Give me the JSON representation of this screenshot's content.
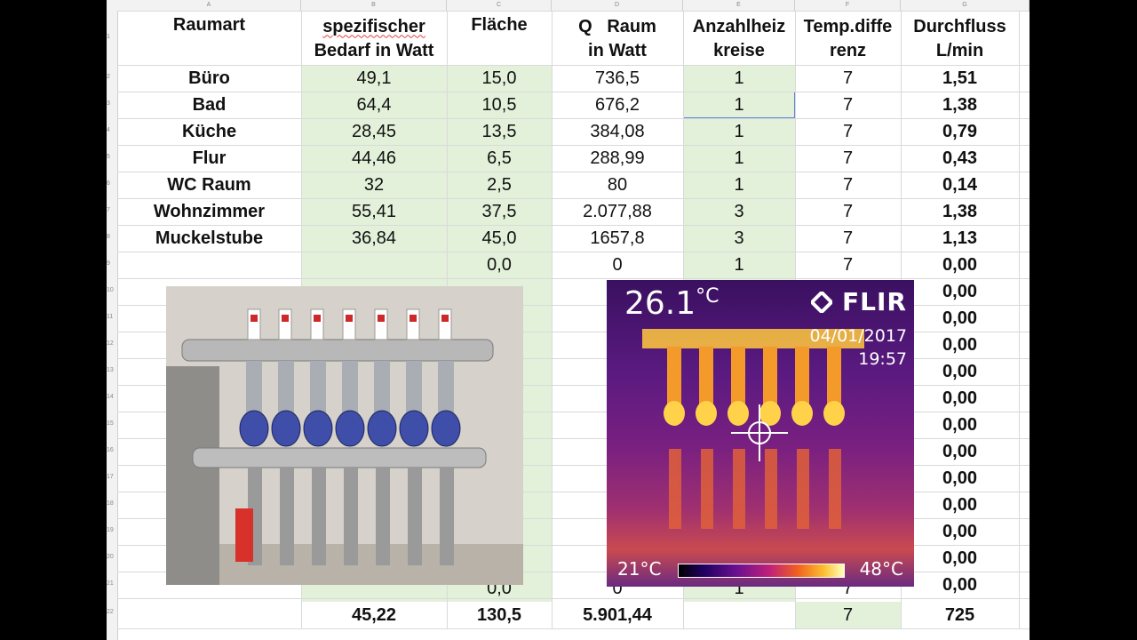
{
  "columns": [
    "A",
    "B",
    "C",
    "D",
    "E",
    "F",
    "G"
  ],
  "headers": {
    "a": [
      "Raumart"
    ],
    "b": [
      "spezifischer",
      "Bedarf in Watt"
    ],
    "c": [
      "Fläche"
    ],
    "d": [
      "Q   Raum",
      "in Watt"
    ],
    "e": [
      "Anzahlheiz",
      "kreise"
    ],
    "f": [
      "Temp.diffe",
      "renz"
    ],
    "g": [
      "Durchfluss",
      "L/min"
    ]
  },
  "row_numbers": [
    "1",
    "2",
    "3",
    "4",
    "5",
    "6",
    "7",
    "8",
    "9",
    "10",
    "11",
    "12",
    "13",
    "14",
    "15",
    "16",
    "17",
    "18",
    "19",
    "20",
    "21",
    "22"
  ],
  "rows": [
    {
      "raumart": "Büro",
      "bedarf": "49,1",
      "flaeche": "15,0",
      "q": "736,5",
      "kreise": "1",
      "temp": "7",
      "durchfluss": "1,51"
    },
    {
      "raumart": "Bad",
      "bedarf": "64,4",
      "flaeche": "10,5",
      "q": "676,2",
      "kreise": "1",
      "temp": "7",
      "durchfluss": "1,38"
    },
    {
      "raumart": "Küche",
      "bedarf": "28,45",
      "flaeche": "13,5",
      "q": "384,08",
      "kreise": "1",
      "temp": "7",
      "durchfluss": "0,79"
    },
    {
      "raumart": "Flur",
      "bedarf": "44,46",
      "flaeche": "6,5",
      "q": "288,99",
      "kreise": "1",
      "temp": "7",
      "durchfluss": "0,43"
    },
    {
      "raumart": "WC Raum",
      "bedarf": "32",
      "flaeche": "2,5",
      "q": "80",
      "kreise": "1",
      "temp": "7",
      "durchfluss": "0,14"
    },
    {
      "raumart": "Wohnzimmer",
      "bedarf": "55,41",
      "flaeche": "37,5",
      "q": "2.077,88",
      "kreise": "3",
      "temp": "7",
      "durchfluss": "1,38"
    },
    {
      "raumart": "Muckelstube",
      "bedarf": "36,84",
      "flaeche": "45,0",
      "q": "1657,8",
      "kreise": "3",
      "temp": "7",
      "durchfluss": "1,13"
    },
    {
      "raumart": "",
      "bedarf": "",
      "flaeche": "0,0",
      "q": "0",
      "kreise": "1",
      "temp": "7",
      "durchfluss": "0,00"
    }
  ],
  "extra_durchfluss": [
    "0,00",
    "0,00",
    "0,00",
    "0,00",
    "0,00",
    "0,00",
    "0,00",
    "0,00",
    "0,00",
    "0,00",
    "0,00",
    "0,00"
  ],
  "row21": {
    "flaeche": "0,0",
    "q": "0",
    "kreise": "1",
    "temp": "7",
    "durchfluss": "0,00"
  },
  "totals": {
    "bedarf": "45,22",
    "flaeche": "130,5",
    "q": "5.901,44",
    "temp": "7",
    "durchfluss": "725"
  },
  "thermal": {
    "temp": "26.1",
    "unit": "°C",
    "logo": "FLIR",
    "date": "04/01/2017",
    "time": "19:57",
    "scale_min": "21°C",
    "scale_max": "48°C"
  },
  "colors": {
    "green_fill": "#e3f1da",
    "selection": "#5b87d6"
  }
}
